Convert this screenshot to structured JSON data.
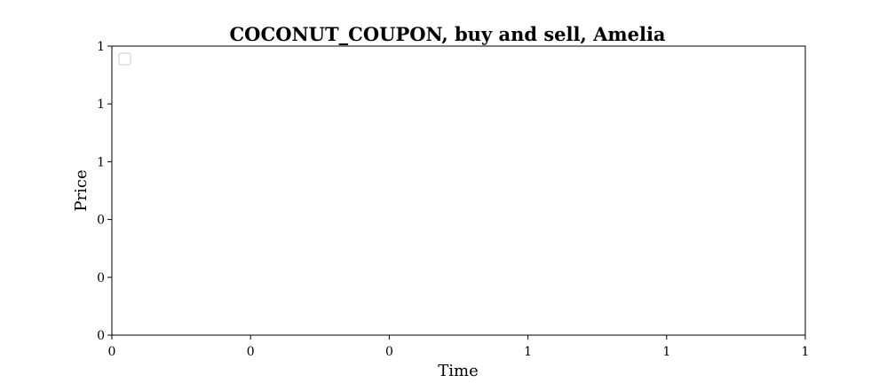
{
  "chart_data": {
    "type": "line",
    "title": "COCONUT_COUPON, buy and sell, Amelia",
    "xlabel": "Time",
    "ylabel": "Price",
    "x_tick_labels": [
      "0",
      "0",
      "0",
      "1",
      "1",
      "1"
    ],
    "y_tick_labels": [
      "0",
      "0",
      "0",
      "1",
      "1",
      "1"
    ],
    "series": [],
    "legend": {
      "placement": "upper-left",
      "entries": []
    },
    "grid": false
  }
}
